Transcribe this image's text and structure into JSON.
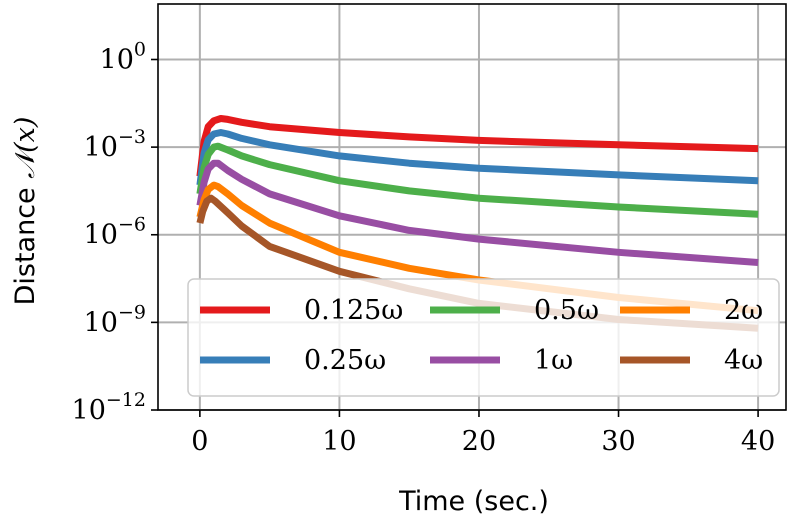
{
  "chart_data": {
    "type": "line",
    "xlabel": "Time (sec.)",
    "ylabel_prefix": "Distance ",
    "ylabel_math": "𝒩(𝑥)",
    "xlim": [
      -3,
      42
    ],
    "ylim_log10": [
      -12,
      1.9
    ],
    "y_scale": "log",
    "grid": true,
    "legend_placement": "lower-center",
    "x_ticks": [
      0,
      10,
      20,
      30,
      40
    ],
    "x_tick_labels": [
      "0",
      "10",
      "20",
      "30",
      "40"
    ],
    "y_ticks_log10": [
      0,
      -3,
      -6,
      -9,
      -12
    ],
    "y_tick_labels": [
      {
        "base": "10",
        "exp": "0"
      },
      {
        "base": "10",
        "exp": "−3"
      },
      {
        "base": "10",
        "exp": "−6"
      },
      {
        "base": "10",
        "exp": "−9"
      },
      {
        "base": "10",
        "exp": "−12"
      }
    ],
    "series": [
      {
        "name": "0.125ω",
        "color": "#e41a1c",
        "points": [
          [
            0,
            -4.0
          ],
          [
            0.3,
            -2.8
          ],
          [
            0.6,
            -2.3
          ],
          [
            1.0,
            -2.1
          ],
          [
            1.5,
            -2.02
          ],
          [
            2,
            -2.05
          ],
          [
            3,
            -2.15
          ],
          [
            5,
            -2.3
          ],
          [
            10,
            -2.5
          ],
          [
            15,
            -2.65
          ],
          [
            20,
            -2.77
          ],
          [
            30,
            -2.92
          ],
          [
            40,
            -3.05
          ]
        ]
      },
      {
        "name": "0.25ω",
        "color": "#377eb8",
        "points": [
          [
            0,
            -4.3
          ],
          [
            0.3,
            -3.2
          ],
          [
            0.6,
            -2.75
          ],
          [
            1.0,
            -2.55
          ],
          [
            1.5,
            -2.5
          ],
          [
            2,
            -2.55
          ],
          [
            3,
            -2.7
          ],
          [
            5,
            -2.92
          ],
          [
            10,
            -3.3
          ],
          [
            15,
            -3.55
          ],
          [
            20,
            -3.72
          ],
          [
            30,
            -3.95
          ],
          [
            40,
            -4.15
          ]
        ]
      },
      {
        "name": "0.5ω",
        "color": "#4daf4a",
        "points": [
          [
            0,
            -4.6
          ],
          [
            0.3,
            -3.7
          ],
          [
            0.6,
            -3.25
          ],
          [
            1.0,
            -3.0
          ],
          [
            1.3,
            -2.97
          ],
          [
            2,
            -3.1
          ],
          [
            3,
            -3.3
          ],
          [
            5,
            -3.6
          ],
          [
            10,
            -4.15
          ],
          [
            15,
            -4.5
          ],
          [
            20,
            -4.75
          ],
          [
            30,
            -5.05
          ],
          [
            40,
            -5.3
          ]
        ]
      },
      {
        "name": "1ω",
        "color": "#984ea3",
        "points": [
          [
            0,
            -5.0
          ],
          [
            0.3,
            -4.2
          ],
          [
            0.6,
            -3.75
          ],
          [
            1.0,
            -3.55
          ],
          [
            1.3,
            -3.55
          ],
          [
            2,
            -3.8
          ],
          [
            3,
            -4.1
          ],
          [
            5,
            -4.6
          ],
          [
            10,
            -5.35
          ],
          [
            15,
            -5.85
          ],
          [
            20,
            -6.15
          ],
          [
            30,
            -6.6
          ],
          [
            40,
            -6.95
          ]
        ]
      },
      {
        "name": "2ω",
        "color": "#ff7f00",
        "points": [
          [
            0,
            -5.4
          ],
          [
            0.3,
            -4.8
          ],
          [
            0.6,
            -4.45
          ],
          [
            1.0,
            -4.3
          ],
          [
            1.3,
            -4.35
          ],
          [
            2,
            -4.6
          ],
          [
            3,
            -5.0
          ],
          [
            5,
            -5.6
          ],
          [
            10,
            -6.6
          ],
          [
            15,
            -7.15
          ],
          [
            20,
            -7.55
          ],
          [
            30,
            -8.15
          ],
          [
            40,
            -8.6
          ]
        ]
      },
      {
        "name": "4ω",
        "color": "#a65628",
        "points": [
          [
            0,
            -5.6
          ],
          [
            0.2,
            -5.2
          ],
          [
            0.5,
            -4.85
          ],
          [
            0.8,
            -4.75
          ],
          [
            1.1,
            -4.85
          ],
          [
            2,
            -5.25
          ],
          [
            3,
            -5.7
          ],
          [
            5,
            -6.4
          ],
          [
            10,
            -7.25
          ],
          [
            15,
            -7.85
          ],
          [
            20,
            -8.35
          ],
          [
            30,
            -8.9
          ],
          [
            40,
            -9.2
          ]
        ]
      }
    ]
  }
}
